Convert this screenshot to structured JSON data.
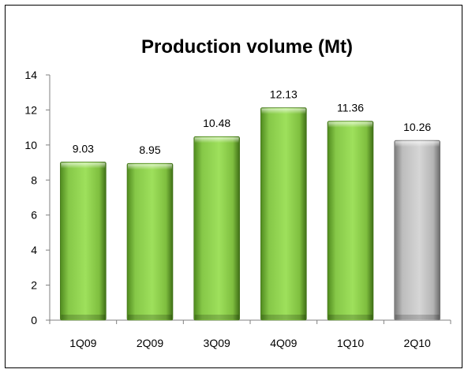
{
  "chart_data": {
    "type": "bar",
    "title": "Production volume (Mt)",
    "xlabel": "",
    "ylabel": "",
    "categories": [
      "1Q09",
      "2Q09",
      "3Q09",
      "4Q09",
      "1Q10",
      "2Q10"
    ],
    "values": [
      9.03,
      8.95,
      10.48,
      12.13,
      11.36,
      10.26
    ],
    "data_labels": [
      "9.03",
      "8.95",
      "10.48",
      "12.13",
      "11.36",
      "10.26"
    ],
    "ylim": [
      0,
      14
    ],
    "yticks": [
      0,
      2,
      4,
      6,
      8,
      10,
      12,
      14
    ],
    "grid": false,
    "legend": "none",
    "bar_colors": [
      "#8fd14f",
      "#8fd14f",
      "#8fd14f",
      "#8fd14f",
      "#8fd14f",
      "#c0c0c0"
    ]
  }
}
